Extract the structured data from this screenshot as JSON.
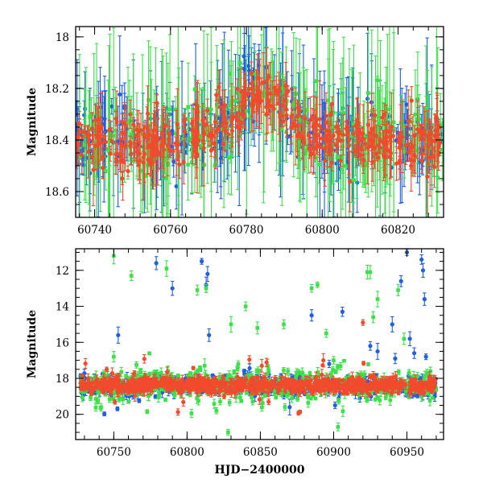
{
  "colors": {
    "blue": "#1f5fe0",
    "green": "#3ee04a",
    "red": "#f24a2c",
    "axes": "#000000"
  },
  "chart_data": [
    {
      "type": "scatter",
      "panel": "top",
      "title": "",
      "xlabel": "",
      "ylabel": "Magnitude",
      "xlim": [
        60735,
        60832
      ],
      "ylim": [
        18.7,
        17.96
      ],
      "y_inverted": true,
      "xticks": [
        60740,
        60760,
        60780,
        60800,
        60820
      ],
      "xtick_labels": [
        "60740",
        "60760",
        "60780",
        "60800",
        "60820"
      ],
      "yticks": [
        18.0,
        18.2,
        18.4,
        18.6
      ],
      "ytick_labels": [
        "18",
        "18.2",
        "18.4",
        "18.6"
      ],
      "series": [
        {
          "name": "blue",
          "color": "blue",
          "x_range": [
            60735,
            60832
          ],
          "baseline": 18.4,
          "scatter": 0.06,
          "error_range": [
            0.03,
            0.3
          ],
          "n": 320
        },
        {
          "name": "green",
          "color": "green",
          "x_range": [
            60735,
            60832
          ],
          "baseline": 18.4,
          "scatter": 0.07,
          "error_range": [
            0.05,
            0.45
          ],
          "n": 260
        },
        {
          "name": "red",
          "color": "red",
          "x_range": [
            60735,
            60832
          ],
          "baseline": 18.4,
          "scatter": 0.05,
          "error_range": [
            0.02,
            0.15
          ],
          "n": 420
        }
      ],
      "trend_note": "mean magnitude ~18.4, brightening to ~18.2 between 60775 and 60795"
    },
    {
      "type": "scatter",
      "panel": "bottom",
      "title": "",
      "xlabel": "HJD−2400000",
      "ylabel": "Magnitude",
      "xlim": [
        60724,
        60975
      ],
      "ylim": [
        21.4,
        10.8
      ],
      "y_inverted": true,
      "xticks": [
        60750,
        60800,
        60850,
        60900,
        60950
      ],
      "xtick_labels": [
        "60750",
        "60800",
        "60850",
        "60900",
        "60950"
      ],
      "yticks": [
        12,
        14,
        16,
        18,
        20
      ],
      "ytick_labels": [
        "12",
        "14",
        "16",
        "18",
        "20"
      ],
      "series": [
        {
          "name": "blue",
          "color": "blue",
          "x_range": [
            60727,
            60970
          ],
          "baseline": 18.4,
          "scatter": 0.25,
          "n": 520,
          "outliers": [
            [
              60779,
              11.6
            ],
            [
              60790,
              13.0
            ],
            [
              60810,
              11.5
            ],
            [
              60813,
              12.8
            ],
            [
              60814,
              12.2
            ],
            [
              60815,
              15.6
            ],
            [
              60753,
              15.6
            ],
            [
              60885,
              14.5
            ],
            [
              60897,
              17.2
            ],
            [
              60906,
              14.3
            ],
            [
              60925,
              16.2
            ],
            [
              60930,
              16.5
            ],
            [
              60940,
              15.0
            ],
            [
              60942,
              16.9
            ],
            [
              60946,
              12.6
            ],
            [
              60950,
              11.0
            ],
            [
              60952,
              15.8
            ],
            [
              60955,
              16.6
            ],
            [
              60960,
              11.4
            ],
            [
              60961,
              12.0
            ],
            [
              60962,
              13.6
            ],
            [
              60963,
              16.8
            ],
            [
              60901,
              19.5
            ],
            [
              60870,
              19.6
            ]
          ]
        },
        {
          "name": "green",
          "color": "green",
          "x_range": [
            60727,
            60970
          ],
          "baseline": 18.4,
          "scatter": 0.45,
          "n": 520,
          "outliers": [
            [
              60750,
              11.2
            ],
            [
              60762,
              12.3
            ],
            [
              60786,
              11.9
            ],
            [
              60807,
              13.1
            ],
            [
              60813,
              13.0
            ],
            [
              60828,
              21.0
            ],
            [
              60830,
              15.0
            ],
            [
              60840,
              14.0
            ],
            [
              60848,
              15.2
            ],
            [
              60855,
              17.3
            ],
            [
              60866,
              15.0
            ],
            [
              60885,
              13.0
            ],
            [
              60889,
              12.8
            ],
            [
              60895,
              15.5
            ],
            [
              60900,
              17.0
            ],
            [
              60903,
              20.7
            ],
            [
              60923,
              12.1
            ],
            [
              60925,
              12.1
            ],
            [
              60927,
              14.6
            ],
            [
              60930,
              13.6
            ],
            [
              60944,
              13.1
            ],
            [
              60948,
              15.8
            ],
            [
              60750,
              16.8
            ],
            [
              60820,
              19.8
            ],
            [
              60812,
              17.3
            ]
          ]
        },
        {
          "name": "red",
          "color": "red",
          "x_range": [
            60727,
            60970
          ],
          "baseline": 18.4,
          "scatter": 0.2,
          "n": 820,
          "outliers": [
            [
              60920,
              14.9
            ],
            [
              60892,
              17.8
            ],
            [
              60851,
              17.3
            ],
            [
              60893,
              17.0
            ],
            [
              60927,
              17.9
            ]
          ]
        }
      ]
    }
  ]
}
